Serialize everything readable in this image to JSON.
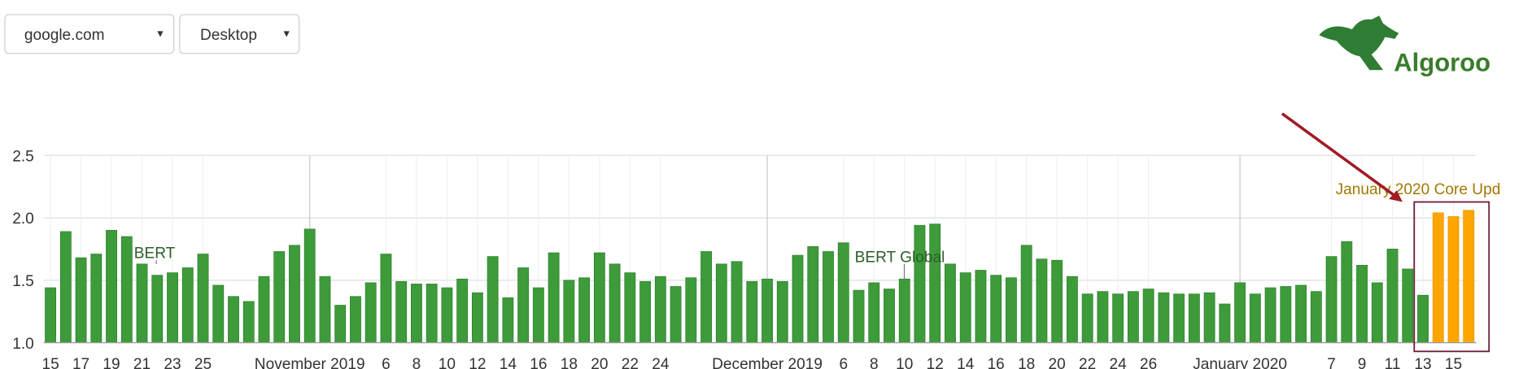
{
  "controls": {
    "site": "google.com",
    "device": "Desktop"
  },
  "logo": {
    "text": "Algoroo"
  },
  "chart_data": {
    "type": "bar",
    "categories": [
      "15",
      null,
      "17",
      null,
      "19",
      null,
      "21",
      null,
      "23",
      null,
      "25",
      null,
      null,
      null,
      null,
      null,
      null,
      "November 2019",
      null,
      null,
      null,
      null,
      "6",
      null,
      "8",
      null,
      "10",
      null,
      "12",
      null,
      "14",
      null,
      "16",
      null,
      "18",
      null,
      "20",
      null,
      "22",
      null,
      "24",
      null,
      null,
      null,
      null,
      null,
      null,
      "December 2019",
      null,
      null,
      null,
      null,
      "6",
      null,
      "8",
      null,
      "10",
      null,
      "12",
      null,
      "14",
      null,
      "16",
      null,
      "18",
      null,
      "20",
      null,
      "22",
      null,
      "24",
      null,
      "26",
      null,
      null,
      null,
      null,
      null,
      "January 2020",
      null,
      null,
      null,
      null,
      null,
      "7",
      null,
      "9",
      null,
      "11",
      null,
      "13",
      null,
      "15",
      null
    ],
    "series": [
      {
        "color": "#3d9b3a",
        "values": [
          1.44,
          1.89,
          1.68,
          1.71,
          1.9,
          1.85,
          1.63,
          1.54,
          1.56,
          1.6,
          1.71,
          1.46,
          1.37,
          1.33,
          1.53,
          1.73,
          1.78,
          1.91,
          1.53,
          1.3,
          1.37,
          1.48,
          1.71,
          1.49,
          1.47,
          1.47,
          1.44,
          1.51,
          1.4,
          1.69,
          1.36,
          1.6,
          1.44,
          1.72,
          1.5,
          1.52,
          1.72,
          1.63,
          1.56,
          1.49,
          1.53,
          1.45,
          1.52,
          1.73,
          1.63,
          1.65,
          1.49,
          1.51,
          1.49,
          1.7,
          1.77,
          1.73,
          1.8,
          1.42,
          1.48,
          1.43,
          1.51,
          1.94,
          1.95,
          1.63,
          1.56,
          1.58,
          1.54,
          1.52,
          1.78,
          1.67,
          1.66,
          1.53,
          1.39,
          1.41,
          1.39,
          1.41,
          1.43,
          1.4,
          1.39,
          1.39,
          1.4,
          1.31,
          1.48,
          1.39,
          1.44,
          1.45,
          1.46,
          1.41,
          1.69,
          1.81,
          1.62,
          1.48,
          1.75,
          1.59,
          1.38,
          null,
          null,
          null
        ]
      },
      {
        "color": "#ffa500",
        "values": [
          null,
          null,
          null,
          null,
          null,
          null,
          null,
          null,
          null,
          null,
          null,
          null,
          null,
          null,
          null,
          null,
          null,
          null,
          null,
          null,
          null,
          null,
          null,
          null,
          null,
          null,
          null,
          null,
          null,
          null,
          null,
          null,
          null,
          null,
          null,
          null,
          null,
          null,
          null,
          null,
          null,
          null,
          null,
          null,
          null,
          null,
          null,
          null,
          null,
          null,
          null,
          null,
          null,
          null,
          null,
          null,
          null,
          null,
          null,
          null,
          null,
          null,
          null,
          null,
          null,
          null,
          null,
          null,
          null,
          null,
          null,
          null,
          null,
          null,
          null,
          null,
          null,
          null,
          null,
          null,
          null,
          null,
          null,
          null,
          null,
          null,
          null,
          null,
          null,
          null,
          null,
          2.04,
          2.01,
          2.06
        ]
      }
    ],
    "annotations": [
      "BERT",
      "BERT Global",
      "January 2020 Core Upd"
    ],
    "ylim": [
      1,
      2.5
    ],
    "yticks": [
      {
        "value": 1,
        "label": "1.0"
      },
      1.5,
      {
        "value": 2,
        "label": "2.0"
      },
      2.5
    ],
    "grid": true
  }
}
